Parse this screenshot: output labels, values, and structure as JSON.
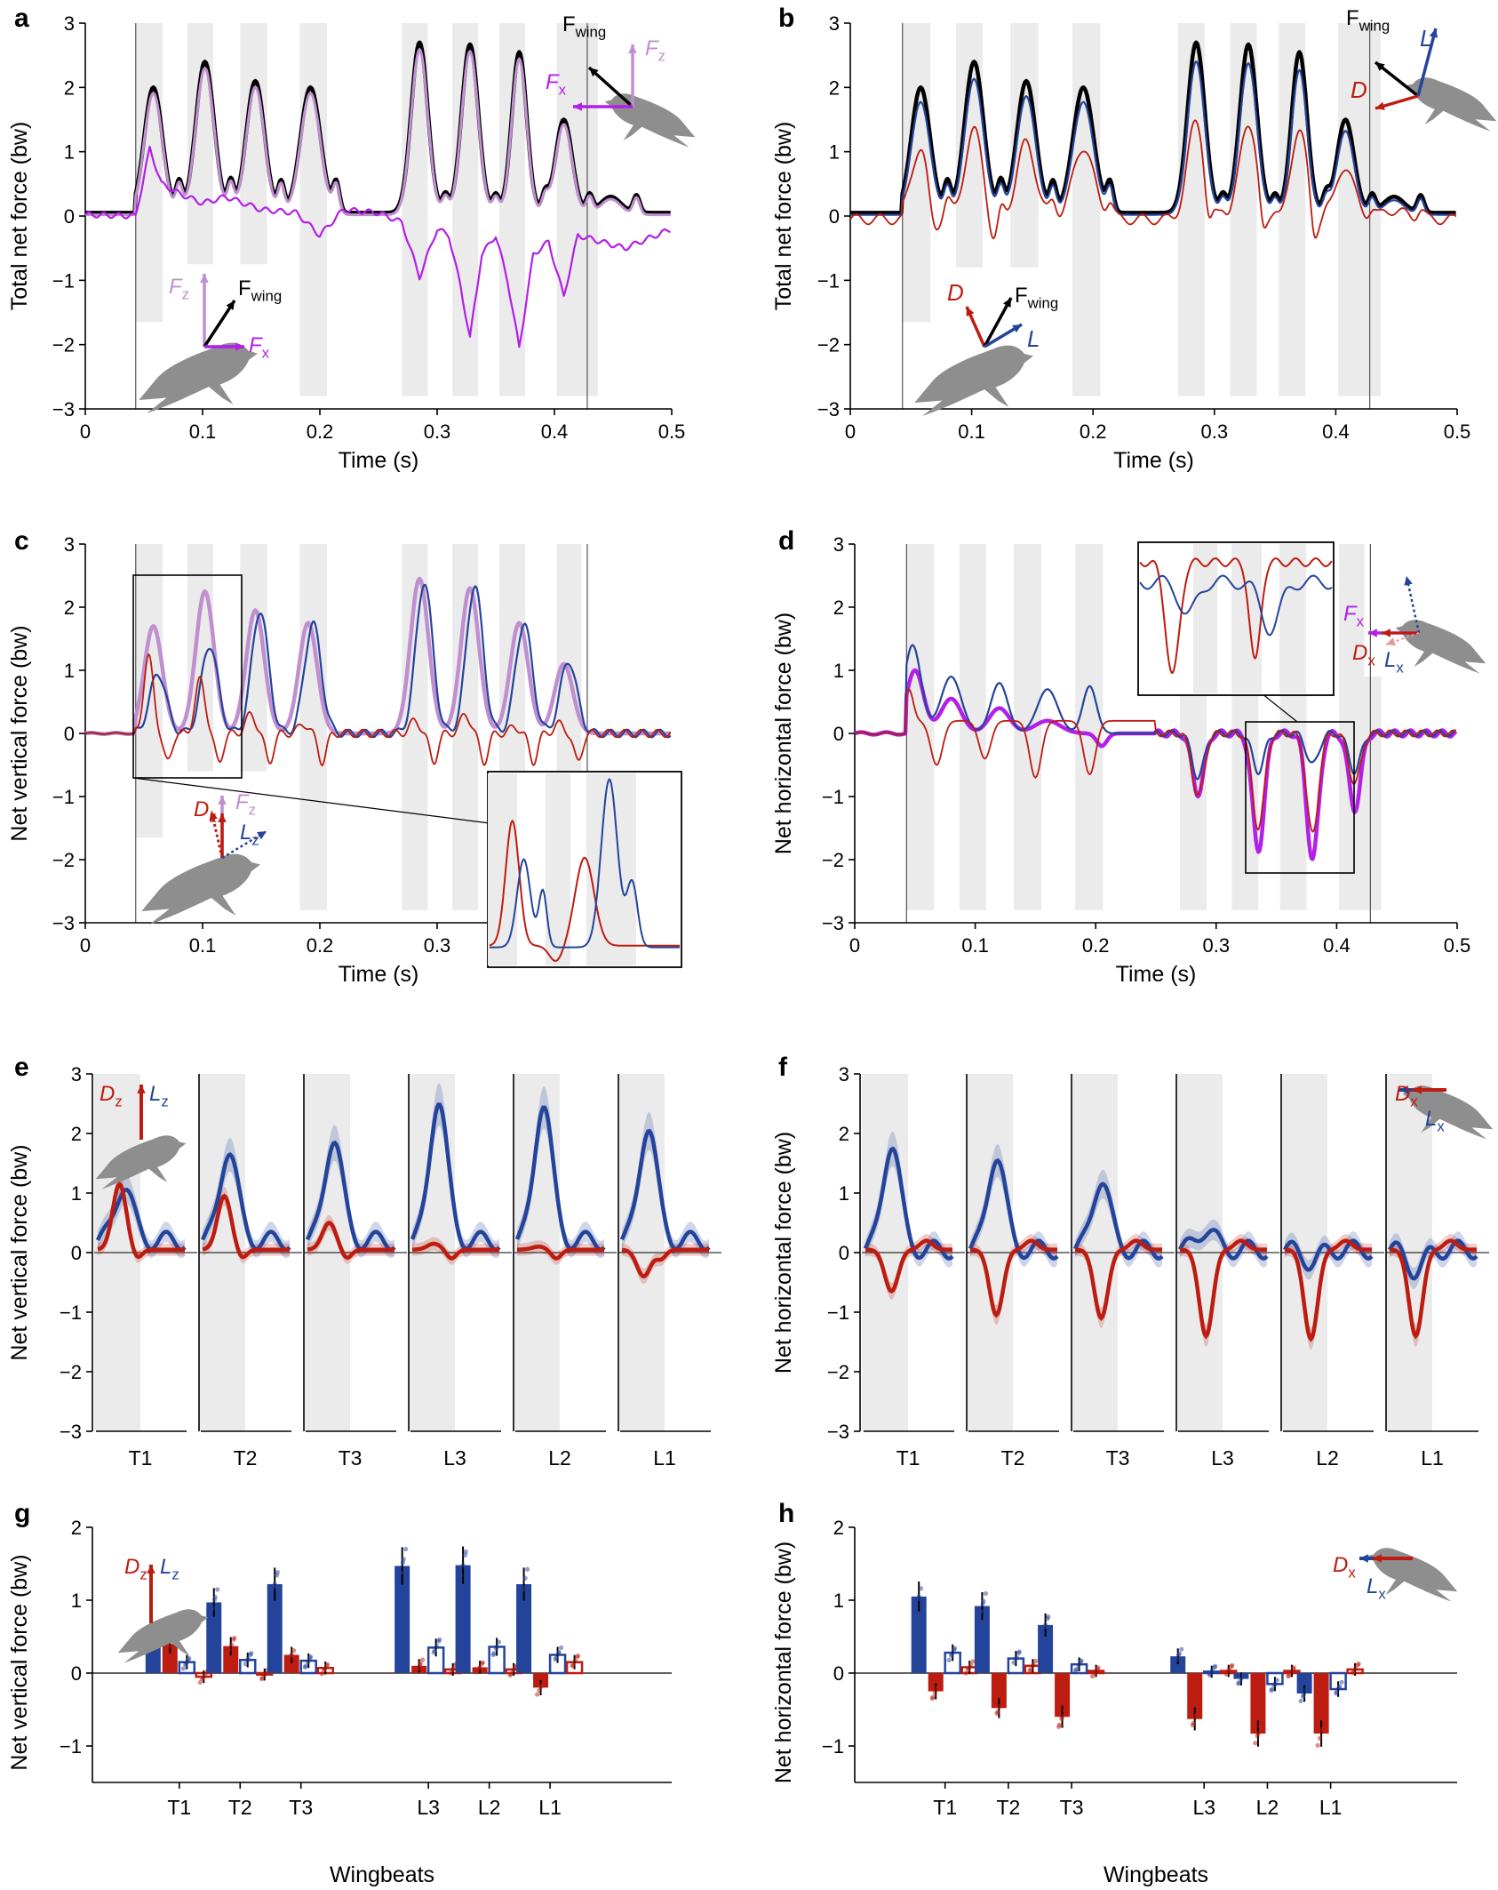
{
  "figure": {
    "colors": {
      "net": "#000000",
      "fz": "#c08fd0",
      "fx": "#b31fe8",
      "lift": "#24449b",
      "drag": "#bd1c10",
      "shade": "#ebebeb",
      "bird": "#8e8e8e"
    }
  },
  "chart_data": [
    {
      "id": "a",
      "type": "line",
      "panel_label": "a",
      "xlabel": "Time (s)",
      "ylabel": "Total net force (bw)",
      "xlim": [
        0,
        0.5
      ],
      "ylim": [
        -3,
        3
      ],
      "xticks": [
        0,
        0.1,
        0.2,
        0.3,
        0.4,
        0.5
      ],
      "xtick_labels": [
        "0",
        "0.1",
        "0.2",
        "0.3",
        "0.4",
        "0.5"
      ],
      "yticks": [
        -3,
        -2,
        -1,
        0,
        1,
        2,
        3
      ],
      "ytick_labels": [
        "−3",
        "−2",
        "−1",
        "0",
        "1",
        "2",
        "3"
      ],
      "vlines": [
        0.043,
        0.428
      ],
      "shade_bands": [
        [
          0.043,
          0.066,
          -1.65,
          3
        ],
        [
          0.087,
          0.109,
          -0.75,
          3
        ],
        [
          0.132,
          0.155,
          -0.75,
          3
        ],
        [
          0.183,
          0.206,
          -2.8,
          3
        ],
        [
          0.27,
          0.292,
          -2.8,
          3
        ],
        [
          0.313,
          0.335,
          -2.8,
          3
        ],
        [
          0.353,
          0.375,
          -2.8,
          3
        ],
        [
          0.402,
          0.423,
          -2.8,
          3
        ],
        [
          0.422,
          0.437,
          -2.8,
          3
        ]
      ],
      "peaks": [
        {
          "t": 0.058,
          "h": 1.95,
          "w": 0.011
        },
        {
          "t": 0.102,
          "h": 2.35,
          "w": 0.011
        },
        {
          "t": 0.145,
          "h": 2.05,
          "w": 0.011
        },
        {
          "t": 0.192,
          "h": 1.95,
          "w": 0.012
        },
        {
          "t": 0.285,
          "h": 2.65,
          "w": 0.01
        },
        {
          "t": 0.328,
          "h": 2.62,
          "w": 0.01
        },
        {
          "t": 0.37,
          "h": 2.5,
          "w": 0.009
        },
        {
          "t": 0.408,
          "h": 1.45,
          "w": 0.01
        },
        {
          "t": 0.448,
          "h": 0.25,
          "w": 0.012
        }
      ],
      "series": [
        {
          "name": "Net force",
          "color_key": "net",
          "width": 4.5,
          "peaks_scale": 1.0,
          "base": 0.05
        },
        {
          "name": "Fz",
          "color_key": "fz",
          "width": 3,
          "peaks_scale": 0.97,
          "base": 0.02
        },
        {
          "name": "Fx",
          "color_key": "fx",
          "width": 2.2,
          "fx_profile": [
            [
              0,
              0.02
            ],
            [
              0.043,
              0.0
            ],
            [
              0.055,
              1.05
            ],
            [
              0.065,
              0.5
            ],
            [
              0.08,
              0.35
            ],
            [
              0.1,
              0.2
            ],
            [
              0.12,
              0.3
            ],
            [
              0.15,
              0.1
            ],
            [
              0.18,
              0.05
            ],
            [
              0.2,
              -0.3
            ],
            [
              0.22,
              0.1
            ],
            [
              0.25,
              0.05
            ],
            [
              0.27,
              -0.1
            ],
            [
              0.285,
              -0.95
            ],
            [
              0.3,
              -0.2
            ],
            [
              0.31,
              -0.3
            ],
            [
              0.32,
              -1.1
            ],
            [
              0.328,
              -1.9
            ],
            [
              0.338,
              -0.6
            ],
            [
              0.35,
              -0.3
            ],
            [
              0.36,
              -1.0
            ],
            [
              0.37,
              -2.05
            ],
            [
              0.382,
              -0.6
            ],
            [
              0.395,
              -0.4
            ],
            [
              0.408,
              -1.25
            ],
            [
              0.42,
              -0.3
            ],
            [
              0.44,
              -0.4
            ],
            [
              0.46,
              -0.5
            ],
            [
              0.48,
              -0.35
            ],
            [
              0.5,
              -0.2
            ]
          ]
        }
      ],
      "annotations": {
        "top_vec": [
          "F",
          "wing",
          "F",
          "z",
          "F",
          "x"
        ],
        "bottom_vec": [
          "F",
          "z",
          "F",
          "wing",
          "F",
          "x"
        ]
      }
    },
    {
      "id": "b",
      "type": "line",
      "panel_label": "b",
      "xlabel": "Time (s)",
      "ylabel": "Total net force (bw)",
      "xlim": [
        0,
        0.5
      ],
      "ylim": [
        -3,
        3
      ],
      "xticks": [
        0,
        0.1,
        0.2,
        0.3,
        0.4,
        0.5
      ],
      "xtick_labels": [
        "0",
        "0.1",
        "0.2",
        "0.3",
        "0.4",
        "0.5"
      ],
      "yticks": [
        -3,
        -2,
        -1,
        0,
        1,
        2,
        3
      ],
      "ytick_labels": [
        "−3",
        "−2",
        "−1",
        "0",
        "1",
        "2",
        "3"
      ],
      "vlines": [
        0.043,
        0.428
      ],
      "shade_bands": [
        [
          0.043,
          0.066,
          -1.65,
          3
        ],
        [
          0.087,
          0.109,
          -0.8,
          3
        ],
        [
          0.132,
          0.155,
          -0.8,
          3
        ],
        [
          0.183,
          0.206,
          -2.8,
          3
        ],
        [
          0.27,
          0.292,
          -2.8,
          3
        ],
        [
          0.313,
          0.335,
          -2.8,
          3
        ],
        [
          0.353,
          0.375,
          -2.8,
          3
        ],
        [
          0.402,
          0.423,
          -2.8,
          3
        ],
        [
          0.422,
          0.437,
          -2.8,
          3
        ]
      ],
      "series": [
        {
          "name": "Net force",
          "color_key": "net",
          "width": 4.5,
          "peaks_scale": 1.0,
          "base": 0.05
        },
        {
          "name": "Lift",
          "color_key": "lift",
          "width": 2.2,
          "peaks_scale": 0.9,
          "base": 0.02
        },
        {
          "name": "Drag",
          "color_key": "drag",
          "width": 1.8,
          "peaks_scale": 0.58,
          "base": -0.05,
          "dip": -0.5
        }
      ],
      "annotations": {
        "top_vec": [
          "F",
          "wing",
          "L",
          "D"
        ],
        "bottom_vec": [
          "D",
          "F",
          "wing",
          "L"
        ]
      }
    },
    {
      "id": "c",
      "type": "line",
      "panel_label": "c",
      "xlabel": "Time (s)",
      "ylabel": "Net vertical force (bw)",
      "xlim": [
        0,
        0.5
      ],
      "ylim": [
        -3,
        3
      ],
      "xticks": [
        0,
        0.1,
        0.2,
        0.3
      ],
      "xtick_labels": [
        "0",
        "0.1",
        "0.2",
        "0.3"
      ],
      "yticks": [
        -3,
        -2,
        -1,
        0,
        1,
        2,
        3
      ],
      "ytick_labels": [
        "−3",
        "−2",
        "−1",
        "0",
        "1",
        "2",
        "3"
      ],
      "vlines": [
        0.043,
        0.428
      ],
      "shade_bands": [
        [
          0.043,
          0.066,
          -1.65,
          3
        ],
        [
          0.087,
          0.109,
          -0.6,
          3
        ],
        [
          0.132,
          0.155,
          -0.6,
          3
        ],
        [
          0.183,
          0.206,
          -2.8,
          3
        ],
        [
          0.27,
          0.292,
          -2.8,
          3
        ],
        [
          0.313,
          0.335,
          -2.8,
          3
        ],
        [
          0.353,
          0.375,
          -2.8,
          3
        ],
        [
          0.402,
          0.423,
          -2.8,
          3
        ]
      ],
      "series": [
        {
          "name": "Fz",
          "color_key": "fz",
          "width": 4.5
        },
        {
          "name": "Lz",
          "color_key": "lift",
          "width": 2.2
        },
        {
          "name": "Dz",
          "color_key": "drag",
          "width": 1.8
        }
      ],
      "inset": {
        "x_range": [
          0.04,
          0.13
        ],
        "y_range": [
          -0.6,
          2.5
        ]
      },
      "annotations": {
        "vec": [
          "D",
          "z",
          "F",
          "z",
          "L",
          "z"
        ]
      }
    },
    {
      "id": "d",
      "type": "line",
      "panel_label": "d",
      "xlabel": "Time (s)",
      "ylabel": "Net horizontal force (bw)",
      "xlim": [
        0,
        0.5
      ],
      "ylim": [
        -3,
        3
      ],
      "xticks": [
        0,
        0.1,
        0.2,
        0.3,
        0.4,
        0.5
      ],
      "xtick_labels": [
        "0",
        "0.1",
        "0.2",
        "0.3",
        "0.4",
        "0.5"
      ],
      "yticks": [
        -3,
        -2,
        -1,
        0,
        1,
        2,
        3
      ],
      "ytick_labels": [
        "−3",
        "−2",
        "−1",
        "0",
        "1",
        "2",
        "3"
      ],
      "vlines": [
        0.043,
        0.428
      ],
      "shade_bands": [
        [
          0.043,
          0.066,
          -2.8,
          3
        ],
        [
          0.087,
          0.109,
          -2.8,
          3
        ],
        [
          0.132,
          0.155,
          -2.8,
          3
        ],
        [
          0.183,
          0.206,
          -2.8,
          3
        ],
        [
          0.27,
          0.292,
          -2.8,
          3
        ],
        [
          0.313,
          0.335,
          -2.8,
          3
        ],
        [
          0.353,
          0.375,
          -2.8,
          3
        ],
        [
          0.402,
          0.423,
          -2.8,
          3
        ],
        [
          0.422,
          0.437,
          -2.8,
          0.9
        ]
      ],
      "series": [
        {
          "name": "Fx",
          "color_key": "fx",
          "width": 4.5
        },
        {
          "name": "Lx",
          "color_key": "lift",
          "width": 2.2
        },
        {
          "name": "Dx",
          "color_key": "drag",
          "width": 1.8
        }
      ],
      "inset": {
        "x_range": [
          0.318,
          0.41
        ],
        "y_range": [
          -2.1,
          0.2
        ]
      },
      "annotations": {
        "vec": [
          "F",
          "x",
          "D",
          "x",
          "L",
          "x"
        ]
      }
    },
    {
      "id": "e",
      "type": "line",
      "panel_label": "e",
      "ylabel": "Net vertical force (bw)",
      "ylim": [
        -3,
        3
      ],
      "yticks": [
        -3,
        -2,
        -1,
        0,
        1,
        2,
        3
      ],
      "ytick_labels": [
        "−3",
        "−2",
        "−1",
        "0",
        "1",
        "2",
        "3"
      ],
      "categories": [
        "T1",
        "T2",
        "T3",
        "L3",
        "L2",
        "L1"
      ],
      "lift_peaks": [
        0.95,
        1.55,
        1.75,
        2.4,
        2.35,
        1.95
      ],
      "drag_peaks": [
        1.1,
        0.9,
        0.45,
        0.1,
        0.05,
        -0.45
      ],
      "series": [
        {
          "name": "Lz",
          "color_key": "lift"
        },
        {
          "name": "Dz",
          "color_key": "drag"
        }
      ],
      "annotations": {
        "vec": [
          "D",
          "z",
          "L",
          "z"
        ]
      }
    },
    {
      "id": "f",
      "type": "line",
      "panel_label": "f",
      "ylabel": "Net horizontal force (bw)",
      "ylim": [
        -3,
        3
      ],
      "yticks": [
        -3,
        -2,
        -1,
        0,
        1,
        2,
        3
      ],
      "ytick_labels": [
        "−3",
        "−2",
        "−1",
        "0",
        "1",
        "2",
        "3"
      ],
      "categories": [
        "T1",
        "T2",
        "T3",
        "L3",
        "L2",
        "L1"
      ],
      "lift_peaks": [
        1.8,
        1.6,
        1.2,
        0.35,
        -0.2,
        -0.35
      ],
      "drag_peaks": [
        -0.7,
        -1.1,
        -1.15,
        -1.45,
        -1.5,
        -1.45
      ],
      "series": [
        {
          "name": "Lx",
          "color_key": "lift"
        },
        {
          "name": "Dx",
          "color_key": "drag"
        }
      ],
      "annotations": {
        "vec": [
          "D",
          "x",
          "L",
          "x"
        ]
      }
    },
    {
      "id": "g",
      "type": "bar",
      "panel_label": "g",
      "xlabel": "Wingbeats",
      "ylabel": "Net vertical force (bw)",
      "ylim": [
        -1.5,
        2
      ],
      "yticks": [
        -1,
        0,
        1,
        2
      ],
      "ytick_labels": [
        "−1",
        "0",
        "1",
        "2"
      ],
      "categories": [
        "T1",
        "T2",
        "T3",
        "L3",
        "L2",
        "L1"
      ],
      "series": [
        {
          "name": "Lz downstroke",
          "color_key": "lift",
          "fill": true,
          "values": [
            0.52,
            0.97,
            1.22,
            1.47,
            1.48,
            1.22
          ]
        },
        {
          "name": "Dz downstroke",
          "color_key": "drag",
          "fill": true,
          "values": [
            0.4,
            0.37,
            0.25,
            0.1,
            0.08,
            -0.2
          ]
        },
        {
          "name": "Lz upstroke",
          "color_key": "lift",
          "fill": false,
          "values": [
            0.15,
            0.18,
            0.17,
            0.35,
            0.36,
            0.25
          ]
        },
        {
          "name": "Dz upstroke",
          "color_key": "drag",
          "fill": false,
          "values": [
            -0.05,
            -0.02,
            0.07,
            0.05,
            0.05,
            0.15
          ]
        }
      ],
      "annotations": {
        "vec": [
          "D",
          "z",
          "L",
          "z"
        ]
      }
    },
    {
      "id": "h",
      "type": "bar",
      "panel_label": "h",
      "xlabel": "Wingbeats",
      "ylabel": "Net horizontal force (bw)",
      "ylim": [
        -1.5,
        2
      ],
      "yticks": [
        -1,
        0,
        1,
        2
      ],
      "ytick_labels": [
        "−1",
        "0",
        "1",
        "2"
      ],
      "categories": [
        "T1",
        "T2",
        "T3",
        "L3",
        "L2",
        "L1"
      ],
      "series": [
        {
          "name": "Lx downstroke",
          "color_key": "lift",
          "fill": true,
          "values": [
            1.05,
            0.92,
            0.66,
            0.23,
            -0.08,
            -0.28
          ]
        },
        {
          "name": "Dx downstroke",
          "color_key": "drag",
          "fill": true,
          "values": [
            -0.25,
            -0.48,
            -0.6,
            -0.63,
            -0.83,
            -0.83
          ]
        },
        {
          "name": "Lx upstroke",
          "color_key": "lift",
          "fill": false,
          "values": [
            0.28,
            0.2,
            0.12,
            0.02,
            -0.15,
            -0.22
          ]
        },
        {
          "name": "Dx upstroke",
          "color_key": "drag",
          "fill": false,
          "values": [
            0.08,
            0.1,
            0.03,
            0.03,
            0.03,
            0.05
          ]
        }
      ],
      "annotations": {
        "vec": [
          "D",
          "x",
          "L",
          "x"
        ]
      }
    }
  ]
}
